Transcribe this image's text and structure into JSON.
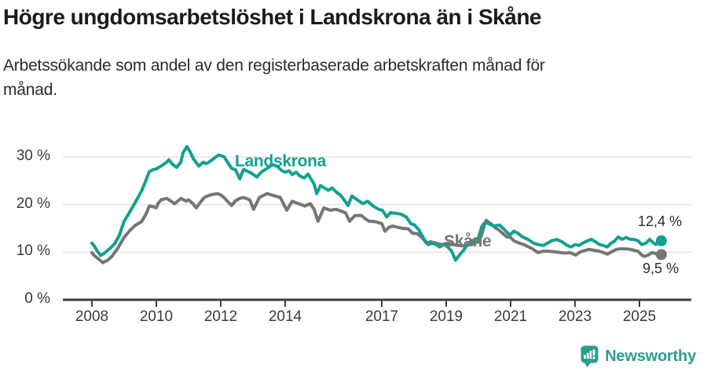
{
  "title": "Högre ungdomsarbetslöshet i Landskrona än i Skåne",
  "subtitle": "Arbetssökande som andel av den registerbaserade arbetskraften månad för\nmånad.",
  "footer": {
    "brand": "Newsworthy",
    "logo_icon": "newsworthy-pin-barchart-icon",
    "brand_color": "#2e9d8d"
  },
  "chart_data": {
    "type": "line",
    "unit": "%",
    "grid": "horizontal",
    "legend_position": "inline-labels",
    "xlim": [
      2008,
      2025.8
    ],
    "ylim": [
      0,
      33
    ],
    "x_ticks": [
      {
        "value": 2008,
        "label": "2008"
      },
      {
        "value": 2010,
        "label": "2010"
      },
      {
        "value": 2012,
        "label": "2012"
      },
      {
        "value": 2014,
        "label": "2014"
      },
      {
        "value": 2017,
        "label": "2017"
      },
      {
        "value": 2019,
        "label": "2019"
      },
      {
        "value": 2021,
        "label": "2021"
      },
      {
        "value": 2023,
        "label": "2023"
      },
      {
        "value": 2025,
        "label": "2025"
      }
    ],
    "y_ticks": [
      {
        "value": 0,
        "label": "0 %"
      },
      {
        "value": 10,
        "label": "10 %"
      },
      {
        "value": 20,
        "label": "20 %"
      },
      {
        "value": 30,
        "label": "30 %"
      }
    ],
    "colors": {
      "gridline": "#e4e4e4",
      "axis": "#3e3e3e",
      "end_label_text": "#2b2b2b"
    },
    "series": [
      {
        "name": "Landskrona",
        "color": "#13a08f",
        "end_label": "12,4 %",
        "end_value": 12.4,
        "points": [
          [
            2008.0,
            11.9
          ],
          [
            2008.07,
            11.3
          ],
          [
            2008.15,
            10.4
          ],
          [
            2008.27,
            9.3
          ],
          [
            2008.41,
            9.9
          ],
          [
            2008.56,
            10.8
          ],
          [
            2008.71,
            11.8
          ],
          [
            2008.85,
            13.5
          ],
          [
            2009.0,
            16.5
          ],
          [
            2009.12,
            17.8
          ],
          [
            2009.24,
            19.2
          ],
          [
            2009.39,
            21.0
          ],
          [
            2009.54,
            22.8
          ],
          [
            2009.66,
            24.8
          ],
          [
            2009.78,
            26.9
          ],
          [
            2009.88,
            27.3
          ],
          [
            2010.0,
            27.5
          ],
          [
            2010.1,
            27.9
          ],
          [
            2010.2,
            28.3
          ],
          [
            2010.32,
            28.9
          ],
          [
            2010.39,
            29.4
          ],
          [
            2010.51,
            28.4
          ],
          [
            2010.63,
            27.8
          ],
          [
            2010.76,
            28.9
          ],
          [
            2010.83,
            30.9
          ],
          [
            2010.95,
            32.2
          ],
          [
            2011.07,
            30.8
          ],
          [
            2011.15,
            29.6
          ],
          [
            2011.32,
            28.1
          ],
          [
            2011.46,
            28.9
          ],
          [
            2011.54,
            28.6
          ],
          [
            2011.61,
            28.8
          ],
          [
            2011.73,
            29.4
          ],
          [
            2011.83,
            29.9
          ],
          [
            2011.93,
            30.4
          ],
          [
            2012.1,
            30.1
          ],
          [
            2012.22,
            28.8
          ],
          [
            2012.34,
            27.6
          ],
          [
            2012.46,
            27.3
          ],
          [
            2012.59,
            25.4
          ],
          [
            2012.71,
            27.4
          ],
          [
            2012.83,
            27.0
          ],
          [
            2012.95,
            26.6
          ],
          [
            2013.12,
            25.8
          ],
          [
            2013.27,
            26.9
          ],
          [
            2013.44,
            27.6
          ],
          [
            2013.61,
            28.4
          ],
          [
            2013.76,
            28.0
          ],
          [
            2013.88,
            27.2
          ],
          [
            2014.0,
            26.8
          ],
          [
            2014.12,
            27.1
          ],
          [
            2014.22,
            26.3
          ],
          [
            2014.34,
            26.8
          ],
          [
            2014.46,
            26.0
          ],
          [
            2014.59,
            25.6
          ],
          [
            2014.71,
            26.4
          ],
          [
            2014.83,
            25.1
          ],
          [
            2014.9,
            24.3
          ],
          [
            2014.98,
            22.3
          ],
          [
            2015.1,
            24.0
          ],
          [
            2015.22,
            23.5
          ],
          [
            2015.34,
            23.0
          ],
          [
            2015.46,
            23.5
          ],
          [
            2015.59,
            22.6
          ],
          [
            2015.71,
            22.0
          ],
          [
            2015.8,
            21.3
          ],
          [
            2015.88,
            20.5
          ],
          [
            2015.95,
            19.8
          ],
          [
            2016.07,
            21.8
          ],
          [
            2016.24,
            21.0
          ],
          [
            2016.41,
            20.2
          ],
          [
            2016.56,
            20.7
          ],
          [
            2016.73,
            19.7
          ],
          [
            2016.9,
            19.0
          ],
          [
            2017.02,
            18.8
          ],
          [
            2017.15,
            17.4
          ],
          [
            2017.27,
            18.3
          ],
          [
            2017.41,
            18.2
          ],
          [
            2017.59,
            18.0
          ],
          [
            2017.76,
            17.4
          ],
          [
            2017.9,
            16.0
          ],
          [
            2018.02,
            15.7
          ],
          [
            2018.15,
            14.7
          ],
          [
            2018.32,
            12.7
          ],
          [
            2018.44,
            11.6
          ],
          [
            2018.56,
            11.9
          ],
          [
            2018.68,
            11.6
          ],
          [
            2018.8,
            11.1
          ],
          [
            2018.93,
            11.6
          ],
          [
            2019.05,
            11.1
          ],
          [
            2019.17,
            10.2
          ],
          [
            2019.29,
            8.3
          ],
          [
            2019.41,
            9.4
          ],
          [
            2019.54,
            10.4
          ],
          [
            2019.61,
            11.1
          ],
          [
            2019.71,
            11.9
          ],
          [
            2019.78,
            12.4
          ],
          [
            2019.9,
            12.6
          ],
          [
            2020.0,
            13.0
          ],
          [
            2020.1,
            15.3
          ],
          [
            2020.17,
            16.0
          ],
          [
            2020.24,
            16.2
          ],
          [
            2020.37,
            15.8
          ],
          [
            2020.49,
            15.5
          ],
          [
            2020.66,
            15.7
          ],
          [
            2020.78,
            14.9
          ],
          [
            2020.88,
            14.2
          ],
          [
            2020.98,
            13.6
          ],
          [
            2021.1,
            14.4
          ],
          [
            2021.22,
            14.0
          ],
          [
            2021.37,
            13.2
          ],
          [
            2021.54,
            12.7
          ],
          [
            2021.71,
            11.9
          ],
          [
            2021.85,
            11.6
          ],
          [
            2022.02,
            11.4
          ],
          [
            2022.15,
            11.9
          ],
          [
            2022.27,
            12.4
          ],
          [
            2022.44,
            12.7
          ],
          [
            2022.59,
            12.2
          ],
          [
            2022.76,
            11.4
          ],
          [
            2022.88,
            11.1
          ],
          [
            2023.0,
            11.6
          ],
          [
            2023.12,
            11.4
          ],
          [
            2023.24,
            11.9
          ],
          [
            2023.39,
            12.4
          ],
          [
            2023.51,
            12.7
          ],
          [
            2023.63,
            12.2
          ],
          [
            2023.76,
            11.6
          ],
          [
            2023.88,
            11.4
          ],
          [
            2024.0,
            11.1
          ],
          [
            2024.12,
            11.9
          ],
          [
            2024.22,
            12.3
          ],
          [
            2024.34,
            13.2
          ],
          [
            2024.46,
            12.7
          ],
          [
            2024.59,
            13.1
          ],
          [
            2024.71,
            12.7
          ],
          [
            2024.83,
            12.7
          ],
          [
            2024.95,
            12.4
          ],
          [
            2025.07,
            11.6
          ],
          [
            2025.2,
            11.9
          ],
          [
            2025.32,
            12.7
          ],
          [
            2025.39,
            12.2
          ],
          [
            2025.51,
            11.6
          ],
          [
            2025.59,
            12.2
          ],
          [
            2025.68,
            12.4
          ]
        ]
      },
      {
        "name": "Skåne",
        "color": "#757575",
        "end_label": "9,5 %",
        "end_value": 9.5,
        "points": [
          [
            2008.0,
            9.9
          ],
          [
            2008.07,
            9.3
          ],
          [
            2008.2,
            8.6
          ],
          [
            2008.34,
            7.8
          ],
          [
            2008.49,
            8.3
          ],
          [
            2008.63,
            9.2
          ],
          [
            2008.8,
            10.8
          ],
          [
            2009.0,
            13.1
          ],
          [
            2009.17,
            14.5
          ],
          [
            2009.34,
            15.6
          ],
          [
            2009.54,
            16.4
          ],
          [
            2009.68,
            18.0
          ],
          [
            2009.78,
            19.7
          ],
          [
            2009.88,
            19.6
          ],
          [
            2010.0,
            19.3
          ],
          [
            2010.05,
            20.2
          ],
          [
            2010.15,
            21.0
          ],
          [
            2010.32,
            21.3
          ],
          [
            2010.44,
            20.8
          ],
          [
            2010.56,
            20.2
          ],
          [
            2010.68,
            20.8
          ],
          [
            2010.76,
            21.3
          ],
          [
            2010.85,
            21.0
          ],
          [
            2010.93,
            20.7
          ],
          [
            2011.0,
            21.0
          ],
          [
            2011.12,
            20.3
          ],
          [
            2011.24,
            19.3
          ],
          [
            2011.37,
            20.5
          ],
          [
            2011.49,
            21.5
          ],
          [
            2011.63,
            21.9
          ],
          [
            2011.73,
            22.1
          ],
          [
            2011.9,
            22.3
          ],
          [
            2012.0,
            22.0
          ],
          [
            2012.1,
            21.5
          ],
          [
            2012.22,
            20.6
          ],
          [
            2012.34,
            19.8
          ],
          [
            2012.46,
            20.8
          ],
          [
            2012.59,
            21.3
          ],
          [
            2012.71,
            21.5
          ],
          [
            2012.9,
            21.0
          ],
          [
            2013.02,
            19.0
          ],
          [
            2013.2,
            21.5
          ],
          [
            2013.44,
            22.3
          ],
          [
            2013.68,
            21.8
          ],
          [
            2013.85,
            21.5
          ],
          [
            2014.05,
            18.8
          ],
          [
            2014.22,
            20.7
          ],
          [
            2014.41,
            20.2
          ],
          [
            2014.61,
            19.7
          ],
          [
            2014.78,
            20.2
          ],
          [
            2014.9,
            19.0
          ],
          [
            2015.02,
            16.5
          ],
          [
            2015.2,
            19.3
          ],
          [
            2015.39,
            18.8
          ],
          [
            2015.59,
            19.0
          ],
          [
            2015.76,
            18.6
          ],
          [
            2015.88,
            18.2
          ],
          [
            2016.0,
            16.5
          ],
          [
            2016.17,
            17.7
          ],
          [
            2016.37,
            17.7
          ],
          [
            2016.49,
            17.0
          ],
          [
            2016.61,
            16.5
          ],
          [
            2016.8,
            16.4
          ],
          [
            2017.0,
            16.0
          ],
          [
            2017.1,
            14.4
          ],
          [
            2017.22,
            15.2
          ],
          [
            2017.34,
            15.5
          ],
          [
            2017.51,
            15.2
          ],
          [
            2017.66,
            15.0
          ],
          [
            2017.83,
            14.9
          ],
          [
            2017.95,
            14.0
          ],
          [
            2018.1,
            13.9
          ],
          [
            2018.24,
            13.1
          ],
          [
            2018.39,
            11.9
          ],
          [
            2018.51,
            12.2
          ],
          [
            2018.68,
            11.9
          ],
          [
            2018.85,
            11.6
          ],
          [
            2019.05,
            11.9
          ],
          [
            2019.22,
            11.6
          ],
          [
            2019.37,
            11.4
          ],
          [
            2019.54,
            11.3
          ],
          [
            2019.71,
            11.5
          ],
          [
            2019.78,
            11.7
          ],
          [
            2019.9,
            12.0
          ],
          [
            2020.02,
            12.2
          ],
          [
            2020.12,
            14.0
          ],
          [
            2020.2,
            16.0
          ],
          [
            2020.24,
            16.7
          ],
          [
            2020.32,
            16.3
          ],
          [
            2020.39,
            16.0
          ],
          [
            2020.51,
            15.2
          ],
          [
            2020.63,
            14.7
          ],
          [
            2020.76,
            13.9
          ],
          [
            2020.88,
            13.2
          ],
          [
            2021.0,
            13.1
          ],
          [
            2021.1,
            12.4
          ],
          [
            2021.27,
            11.9
          ],
          [
            2021.41,
            11.6
          ],
          [
            2021.56,
            11.1
          ],
          [
            2021.68,
            10.7
          ],
          [
            2021.85,
            9.9
          ],
          [
            2022.0,
            10.2
          ],
          [
            2022.17,
            10.2
          ],
          [
            2022.34,
            10.1
          ],
          [
            2022.54,
            9.9
          ],
          [
            2022.71,
            9.8
          ],
          [
            2022.85,
            9.9
          ],
          [
            2023.02,
            9.4
          ],
          [
            2023.15,
            10.0
          ],
          [
            2023.27,
            10.3
          ],
          [
            2023.44,
            10.6
          ],
          [
            2023.59,
            10.4
          ],
          [
            2023.76,
            10.2
          ],
          [
            2023.88,
            9.9
          ],
          [
            2024.0,
            9.6
          ],
          [
            2024.17,
            10.2
          ],
          [
            2024.29,
            10.6
          ],
          [
            2024.41,
            10.7
          ],
          [
            2024.59,
            10.7
          ],
          [
            2024.71,
            10.6
          ],
          [
            2024.83,
            10.4
          ],
          [
            2024.95,
            10.2
          ],
          [
            2025.07,
            9.4
          ],
          [
            2025.15,
            9.1
          ],
          [
            2025.27,
            9.4
          ],
          [
            2025.39,
            9.9
          ],
          [
            2025.46,
            9.8
          ],
          [
            2025.59,
            9.4
          ],
          [
            2025.68,
            9.5
          ]
        ]
      }
    ]
  }
}
